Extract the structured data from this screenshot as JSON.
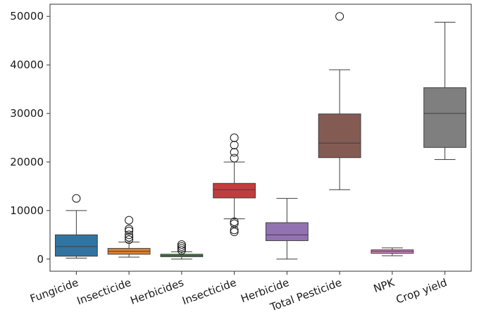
{
  "chart_data": {
    "type": "box",
    "title": "",
    "xlabel": "",
    "ylabel": "",
    "ylim": [
      -2500,
      52500
    ],
    "yticks": [
      0,
      10000,
      20000,
      30000,
      40000,
      50000
    ],
    "ytick_labels": [
      "0",
      "10000",
      "20000",
      "30000",
      "40000",
      "50000"
    ],
    "grid": false,
    "legend": "none",
    "categories": [
      "Fungicide",
      "Insecticide",
      "Herbicides",
      "Insecticide",
      "Herbicide",
      "Total Pesticide",
      "NPK",
      "Crop yield"
    ],
    "boxes": [
      {
        "label": "Fungicide",
        "color": "#3274a1",
        "whisker_low": 200,
        "q1": 600,
        "median": 2600,
        "q3": 5000,
        "whisker_high": 10000,
        "outliers": [
          12500
        ]
      },
      {
        "label": "Insecticide",
        "color": "#e1812c",
        "whisker_low": 400,
        "q1": 1000,
        "median": 1600,
        "q3": 2200,
        "whisker_high": 3500,
        "outliers": [
          4000,
          4500,
          5000,
          5800,
          6200,
          8000
        ]
      },
      {
        "label": "Herbicides",
        "color": "#3a923a",
        "whisker_low": 0,
        "q1": 500,
        "median": 700,
        "q3": 1000,
        "whisker_high": 1500,
        "outliers": [
          1800,
          2200,
          2600,
          3000
        ]
      },
      {
        "label": "Insecticide",
        "color": "#c03d3e",
        "whisker_low": 8300,
        "q1": 12600,
        "median": 14300,
        "q3": 15600,
        "whisker_high": 20000,
        "outliers": [
          5600,
          6000,
          7300,
          7700,
          20800,
          22000,
          23500,
          25000
        ]
      },
      {
        "label": "Herbicide",
        "color": "#9372b2",
        "whisker_low": 0,
        "q1": 3800,
        "median": 5000,
        "q3": 7500,
        "whisker_high": 12500,
        "outliers": []
      },
      {
        "label": "Total Pesticide",
        "color": "#845b53",
        "whisker_low": 14300,
        "q1": 20900,
        "median": 23900,
        "q3": 29900,
        "whisker_high": 39000,
        "outliers": [
          50000
        ]
      },
      {
        "label": "NPK",
        "color": "#d684bd",
        "whisker_low": 700,
        "q1": 1200,
        "median": 1600,
        "q3": 1900,
        "whisker_high": 2300,
        "outliers": []
      },
      {
        "label": "Crop yield",
        "color": "#7f7f7f",
        "whisker_low": 20500,
        "q1": 23000,
        "median": 30000,
        "q3": 35300,
        "whisker_high": 48800,
        "outliers": []
      }
    ]
  }
}
